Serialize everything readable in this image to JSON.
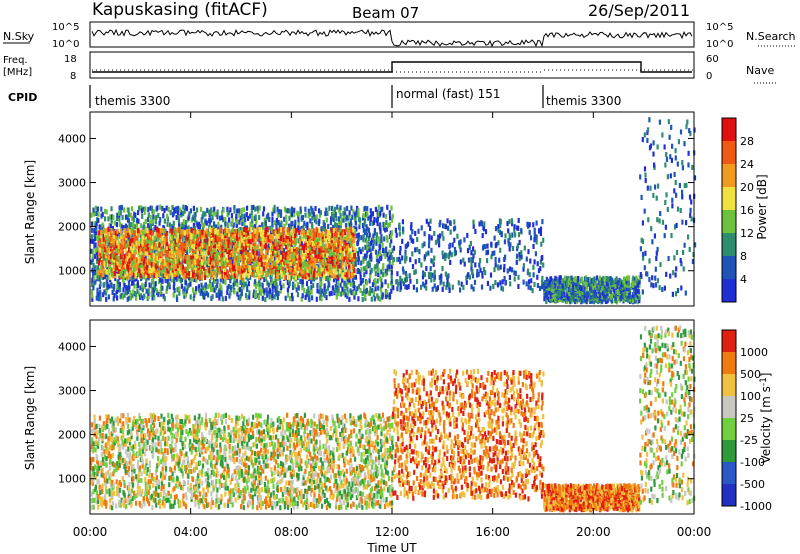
{
  "header": {
    "station": "Kapuskasing (fitACF)",
    "beam": "Beam 07",
    "date": "26/Sep/2011"
  },
  "panels": {
    "nsky": {
      "left_label": "N.Sky",
      "right_label": "N.Search",
      "ticks": [
        "10^5",
        "10^0"
      ],
      "right_ticks": [
        "10^5",
        "10^0"
      ]
    },
    "freq": {
      "left_label_line1": "Freq.",
      "left_label_line2": "[MHz]",
      "right_label": "Nave",
      "ticks": [
        "18",
        "8"
      ],
      "right_ticks": [
        "60",
        "0"
      ]
    },
    "cpid": {
      "label": "CPID",
      "segments": [
        {
          "name": "themis 3300",
          "start_hour": 0,
          "end_hour": 12
        },
        {
          "name": "normal (fast) 151",
          "start_hour": 12,
          "end_hour": 18
        },
        {
          "name": "themis 3300",
          "start_hour": 18,
          "end_hour": 24
        }
      ]
    }
  },
  "chart_data": [
    {
      "type": "heatmap",
      "title": "",
      "xlabel": "",
      "ylabel": "Slant Range [km]",
      "xlim": [
        0,
        24
      ],
      "ylim": [
        200,
        4600
      ],
      "y_ticks": [
        1000,
        2000,
        3000,
        4000
      ],
      "colorbar": {
        "label": "Power [dB]",
        "ticks": [
          "4",
          "8",
          "12",
          "16",
          "20",
          "24",
          "28"
        ],
        "colors": [
          "#1f2fd6",
          "#1f55b8",
          "#2f8c6e",
          "#6cc23c",
          "#f0e040",
          "#f09a20",
          "#f05a10",
          "#e01010"
        ]
      },
      "regions": [
        {
          "t0": 0.0,
          "t1": 12.0,
          "r0": 400,
          "r1": 2500,
          "level": "medium"
        },
        {
          "t0": 0.3,
          "t1": 10.5,
          "r0": 900,
          "r1": 2000,
          "level": "high"
        },
        {
          "t0": 12.0,
          "t1": 18.0,
          "r0": 600,
          "r1": 2200,
          "level": "low"
        },
        {
          "t0": 18.0,
          "t1": 21.8,
          "r0": 350,
          "r1": 900,
          "level": "medium"
        },
        {
          "t0": 21.8,
          "t1": 24.0,
          "r0": 500,
          "r1": 4500,
          "level": "low"
        }
      ]
    },
    {
      "type": "heatmap",
      "title": "",
      "xlabel": "Time UT",
      "ylabel": "Slant Range [km]",
      "xlim": [
        0,
        24
      ],
      "ylim": [
        200,
        4600
      ],
      "y_ticks": [
        1000,
        2000,
        3000,
        4000
      ],
      "x_ticks": [
        "00:00",
        "04:00",
        "08:00",
        "12:00",
        "16:00",
        "20:00",
        "00:00"
      ],
      "colorbar": {
        "label": "Velocity [m s^-1]",
        "ticks": [
          "1000",
          "500",
          "100",
          "25",
          "-25",
          "-100",
          "-500",
          "-1000"
        ],
        "colors": [
          "#2030c0",
          "#2a58c8",
          "#2f9a3c",
          "#70d040",
          "#c8c8c0",
          "#f0c040",
          "#f07a10",
          "#e02010"
        ]
      },
      "regions": [
        {
          "t0": 0.0,
          "t1": 12.0,
          "r0": 400,
          "r1": 2500,
          "level": "mixed"
        },
        {
          "t0": 12.0,
          "t1": 18.0,
          "r0": 600,
          "r1": 3500,
          "level": "negative"
        },
        {
          "t0": 18.0,
          "t1": 21.8,
          "r0": 350,
          "r1": 900,
          "level": "negative"
        },
        {
          "t0": 21.8,
          "t1": 24.0,
          "r0": 500,
          "r1": 4500,
          "level": "mixed"
        }
      ]
    }
  ]
}
